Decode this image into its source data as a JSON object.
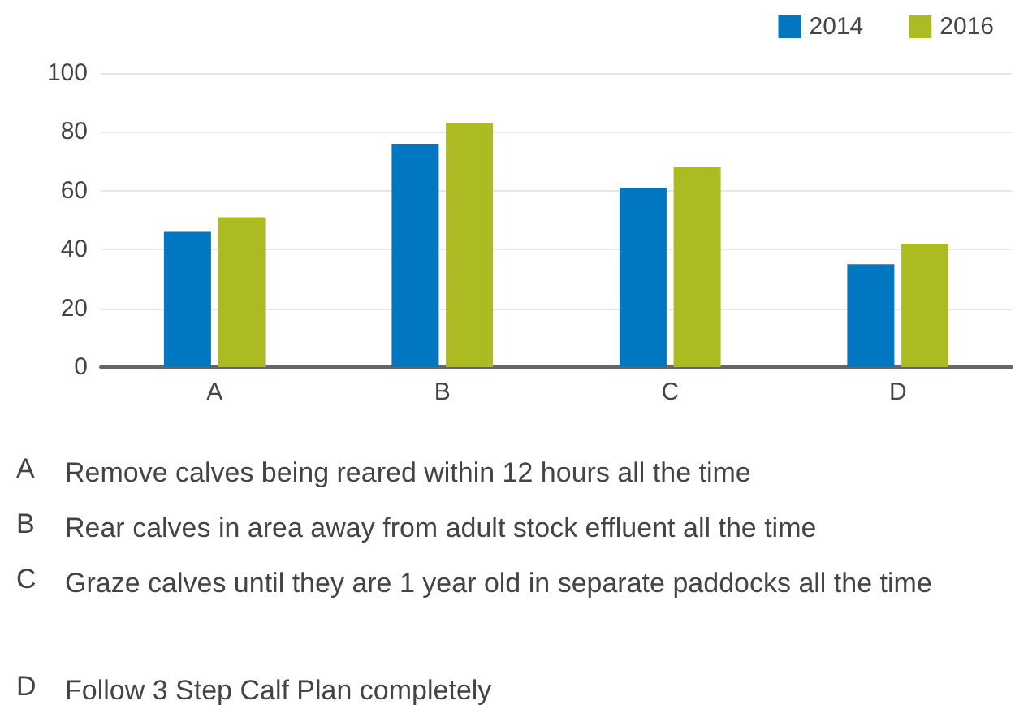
{
  "chart_data": {
    "type": "bar",
    "categories": [
      "A",
      "B",
      "C",
      "D"
    ],
    "series": [
      {
        "name": "2014",
        "color": "#0077c0",
        "values": [
          46,
          76,
          61,
          35
        ]
      },
      {
        "name": "2016",
        "color": "#adbb22",
        "values": [
          51,
          83,
          68,
          42
        ]
      }
    ],
    "ylim": [
      0,
      100
    ],
    "yticks": [
      0,
      20,
      40,
      60,
      80,
      100
    ],
    "grid": "y",
    "legend": "top right",
    "annotations": [
      "A Remove calves being reared within 12 hours all the time",
      "B Rear calves in area away from adult stock effluent all the time",
      "C Graze calves until they are 1 year old in separate paddocks all the time",
      "D Follow 3 Step Calf Plan completely"
    ]
  }
}
